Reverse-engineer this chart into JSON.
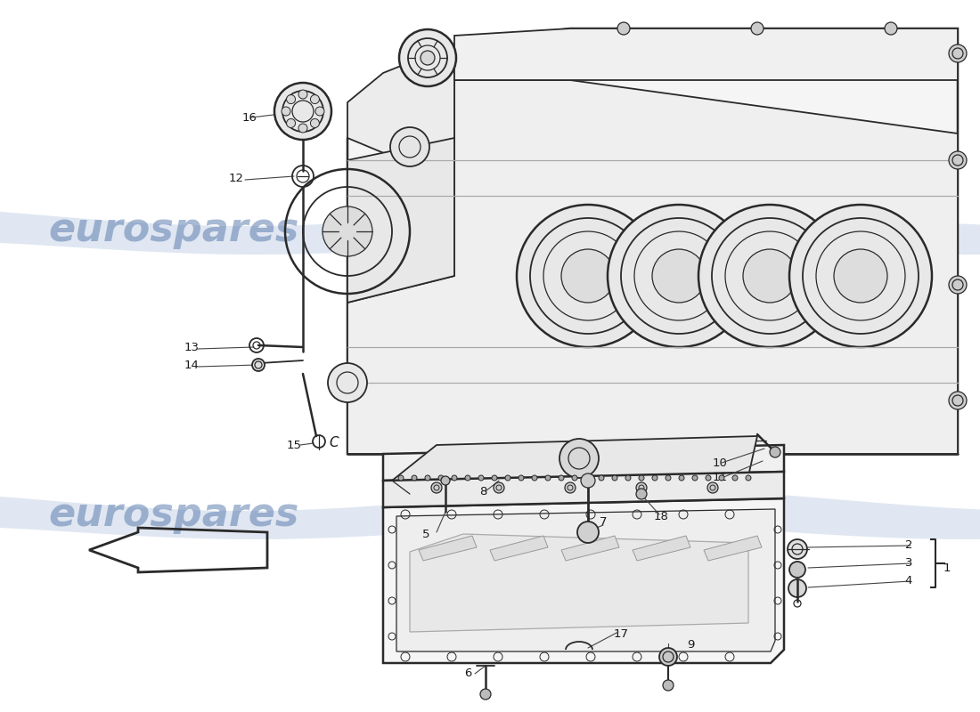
{
  "bg_color": "#ffffff",
  "line_color": "#2a2a2a",
  "watermark_color": "#c8d4e8",
  "watermark_text": "eurospares",
  "watermark_alpha": 0.55,
  "watermark_fontsize": 32,
  "lw_heavy": 1.8,
  "lw_medium": 1.3,
  "lw_light": 0.9,
  "label_fontsize": 9.5,
  "label_color": "#1a1a1a"
}
